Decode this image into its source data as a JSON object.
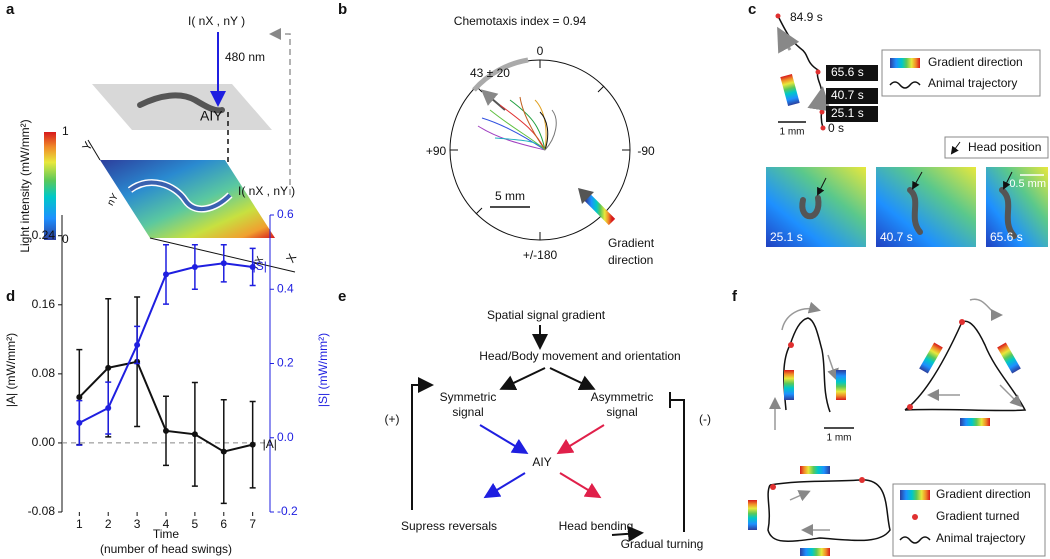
{
  "panel_labels": [
    "a",
    "b",
    "c",
    "d",
    "e",
    "f"
  ],
  "panel_a": {
    "intensity_top": "I( nX , nY )",
    "wavelength": "480 nm",
    "neuron": "AIY",
    "intensity_bottom": "I( nX , nY )",
    "colorbar_label": "Light intensity (mW/mm²)",
    "colorbar_max": "1",
    "colorbar_min": "0",
    "axis_y": "Y",
    "axis_ny": "nY",
    "axis_x": "X",
    "axis_nx": "nX"
  },
  "panel_b": {
    "title": "Chemotaxis index = 0.94",
    "angle_top": "0",
    "angle_left": "+90",
    "angle_right": "-90",
    "angle_bottom": "+/-180",
    "mean_angle": "43 ± 20",
    "scale": "5 mm",
    "gradient_line1": "Gradient",
    "gradient_line2": "direction"
  },
  "panel_c": {
    "times": [
      "84.9 s",
      "65.6 s",
      "40.7 s",
      "25.1 s",
      "0 s"
    ],
    "legend": [
      "Gradient direction",
      "Animal trajectory"
    ],
    "scale": "1 mm",
    "head_position": "Head position",
    "frame_scale": "0.5 mm",
    "frames": [
      "25.1 s",
      "40.7 s",
      "65.6 s"
    ]
  },
  "panel_e": {
    "gradient": "Spatial signal gradient",
    "movement": "Head/Body movement and orientation",
    "symmetric": [
      "Symmetric",
      "signal"
    ],
    "asymmetric": [
      "Asymmetric",
      "signal"
    ],
    "neuron": "AIY",
    "positive": "(+)",
    "negative": "(-)",
    "reversals": "Supress reversals",
    "bending": "Head bending",
    "turning": "Gradual turning"
  },
  "panel_f": {
    "scale": "1 mm",
    "legend": [
      "Gradient direction",
      "Gradient turned",
      "Animal trajectory"
    ]
  },
  "chart_data": {
    "type": "line",
    "ylabel": "|A| (mW/mm²)",
    "y2label": "|S| (mW/mm²)",
    "xlabel": "Time",
    "xlabel_sub": "(number of head swings)",
    "x": [
      1,
      2,
      3,
      4,
      5,
      6,
      7
    ],
    "xlim": [
      0.4,
      7.6
    ],
    "xticks": [
      1,
      2,
      3,
      4,
      5,
      6,
      7
    ],
    "ylim": [
      -0.08,
      0.264
    ],
    "yticks": [
      -0.08,
      {
        "value": 0,
        "label": "0.00"
      },
      0.08,
      0.16,
      0.24
    ],
    "y2lim": [
      -0.2,
      0.6
    ],
    "y2ticks": [
      -0.2,
      {
        "value": 0,
        "label": "0.0"
      },
      0.2,
      0.4,
      0.6
    ],
    "zero_line": true,
    "series": [
      {
        "name": "|A|",
        "color": "#111111",
        "values": [
          0.053,
          0.087,
          0.094,
          0.014,
          0.01,
          -0.01,
          -0.002
        ],
        "errors": [
          0.055,
          0.08,
          0.075,
          0.04,
          0.06,
          0.06,
          0.05
        ]
      },
      {
        "name": "|S|",
        "color": "#1f1fe0",
        "axis": "y2",
        "values": [
          0.04,
          0.08,
          0.25,
          0.44,
          0.46,
          0.47,
          0.46
        ],
        "errors": [
          0.06,
          0.07,
          0.05,
          0.08,
          0.06,
          0.05,
          0.05
        ]
      }
    ]
  }
}
